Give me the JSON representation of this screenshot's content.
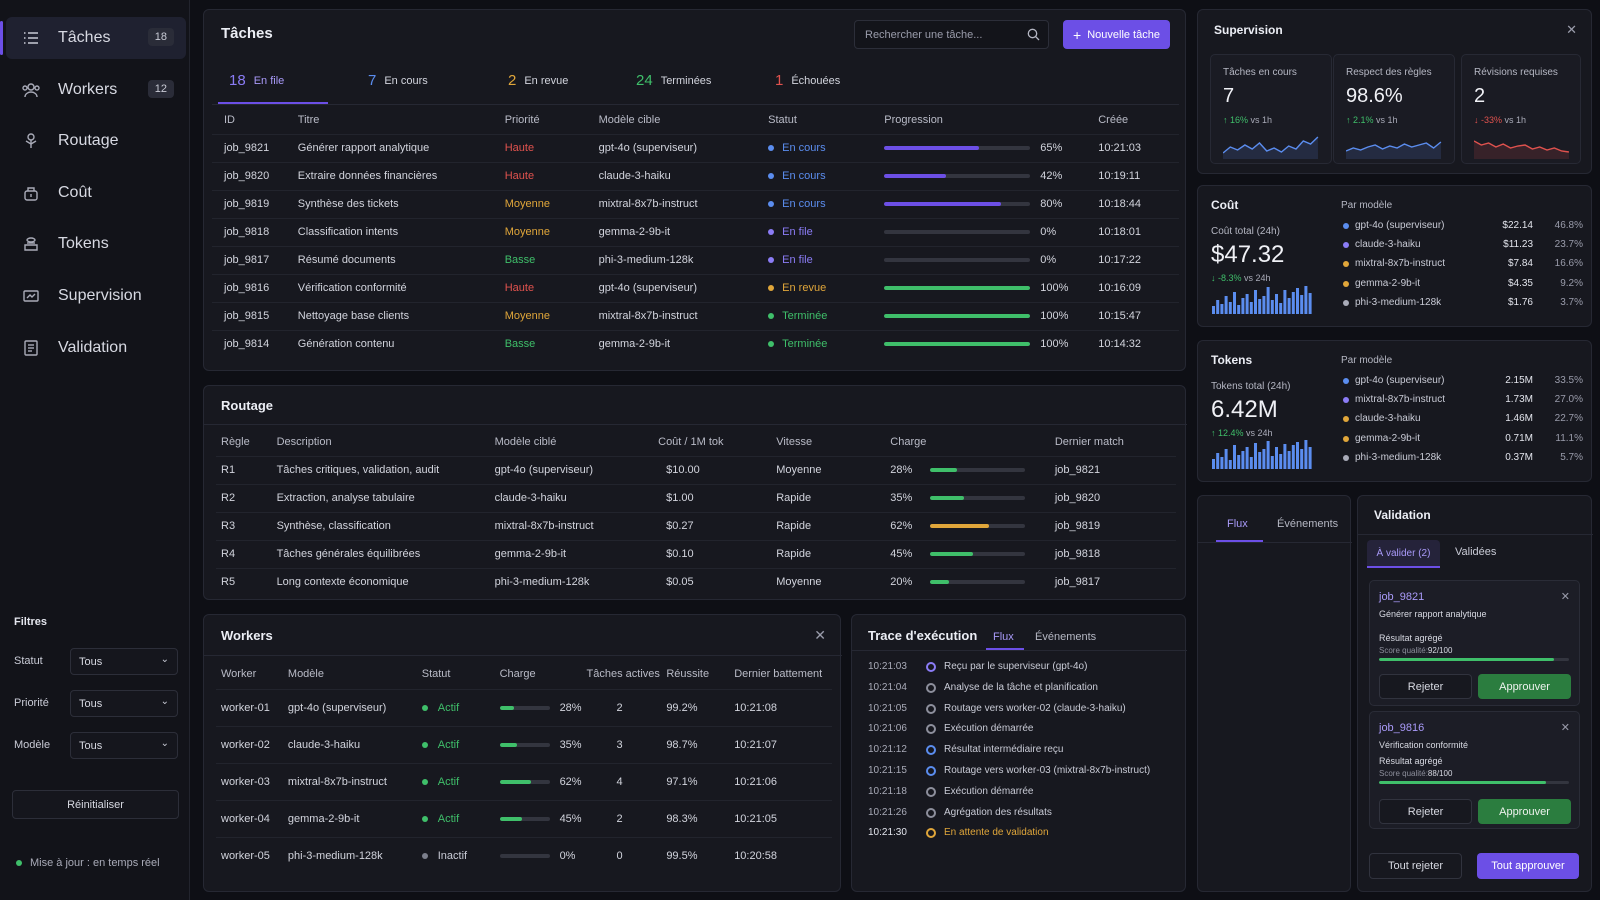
{
  "sidebar": {
    "items": [
      {
        "label": "Tâches",
        "badge": "18",
        "icon": "list-icon"
      },
      {
        "label": "Workers",
        "badge": "12",
        "icon": "users-icon"
      },
      {
        "label": "Routage",
        "badge": "",
        "icon": "route-icon"
      },
      {
        "label": "Coût",
        "badge": "",
        "icon": "coin-icon"
      },
      {
        "label": "Tokens",
        "badge": "",
        "icon": "coins-icon"
      },
      {
        "label": "Supervision",
        "badge": "",
        "icon": "monitor-icon"
      },
      {
        "label": "Validation",
        "badge": "",
        "icon": "checklist-icon"
      }
    ],
    "filters": {
      "title": "Filtres",
      "statut_label": "Statut",
      "statut_value": "Tous",
      "priorite_label": "Priorité",
      "priorite_value": "Tous",
      "modele_label": "Modèle",
      "modele_value": "Tous",
      "reset": "Réinitialiser"
    },
    "live": "Mise à jour : en temps réel"
  },
  "tasks": {
    "title": "Tâches",
    "search_placeholder": "Rechercher une tâche...",
    "new_button": "Nouvelle tâche",
    "tabs": [
      {
        "n": "18",
        "label": "En file",
        "color": "#8b7cf6"
      },
      {
        "n": "7",
        "label": "En cours",
        "color": "#5b8def"
      },
      {
        "n": "2",
        "label": "En revue",
        "color": "#e0a63a"
      },
      {
        "n": "24",
        "label": "Terminées",
        "color": "#3fbf6a"
      },
      {
        "n": "1",
        "label": "Échouées",
        "color": "#e0524e"
      }
    ],
    "columns": [
      "ID",
      "Titre",
      "Priorité",
      "Modèle cible",
      "Statut",
      "Progression",
      "Créée"
    ],
    "rows": [
      {
        "id": "job_9821",
        "title": "Générer rapport analytique",
        "priority": "Haute",
        "model": "gpt-4o (superviseur)",
        "status": "En cours",
        "progress": 65,
        "created": "10:21:03"
      },
      {
        "id": "job_9820",
        "title": "Extraire données financières",
        "priority": "Haute",
        "model": "claude-3-haiku",
        "status": "En cours",
        "progress": 42,
        "created": "10:19:11"
      },
      {
        "id": "job_9819",
        "title": "Synthèse des tickets",
        "priority": "Moyenne",
        "model": "mixtral-8x7b-instruct",
        "status": "En cours",
        "progress": 80,
        "created": "10:18:44"
      },
      {
        "id": "job_9818",
        "title": "Classification intents",
        "priority": "Moyenne",
        "model": "gemma-2-9b-it",
        "status": "En file",
        "progress": 0,
        "created": "10:18:01"
      },
      {
        "id": "job_9817",
        "title": "Résumé documents",
        "priority": "Basse",
        "model": "phi-3-medium-128k",
        "status": "En file",
        "progress": 0,
        "created": "10:17:22"
      },
      {
        "id": "job_9816",
        "title": "Vérification conformité",
        "priority": "Haute",
        "model": "gpt-4o (superviseur)",
        "status": "En revue",
        "progress": 100,
        "created": "10:16:09"
      },
      {
        "id": "job_9815",
        "title": "Nettoyage base clients",
        "priority": "Moyenne",
        "model": "mixtral-8x7b-instruct",
        "status": "Terminée",
        "progress": 100,
        "created": "10:15:47"
      },
      {
        "id": "job_9814",
        "title": "Génération contenu",
        "priority": "Basse",
        "model": "gemma-2-9b-it",
        "status": "Terminée",
        "progress": 100,
        "created": "10:14:32"
      }
    ]
  },
  "routing": {
    "title": "Routage",
    "columns": [
      "Règle",
      "Description",
      "Modèle ciblé",
      "Coût / 1M tok",
      "Vitesse",
      "Charge",
      "Dernier match"
    ],
    "rows": [
      {
        "rule": "R1",
        "desc": "Tâches critiques, validation, audit",
        "model": "gpt-4o (superviseur)",
        "cost": "$10.00",
        "speed": "Moyenne",
        "load": 28,
        "last": "job_9821"
      },
      {
        "rule": "R2",
        "desc": "Extraction, analyse tabulaire",
        "model": "claude-3-haiku",
        "cost": "$1.00",
        "speed": "Rapide",
        "load": 35,
        "last": "job_9820"
      },
      {
        "rule": "R3",
        "desc": "Synthèse, classification",
        "model": "mixtral-8x7b-instruct",
        "cost": "$0.27",
        "speed": "Rapide",
        "load": 62,
        "last": "job_9819"
      },
      {
        "rule": "R4",
        "desc": "Tâches générales équilibrées",
        "model": "gemma-2-9b-it",
        "cost": "$0.10",
        "speed": "Rapide",
        "load": 45,
        "last": "job_9818"
      },
      {
        "rule": "R5",
        "desc": "Long contexte économique",
        "model": "phi-3-medium-128k",
        "cost": "$0.05",
        "speed": "Moyenne",
        "load": 20,
        "last": "job_9817"
      }
    ]
  },
  "workers": {
    "title": "Workers",
    "columns": [
      "Worker",
      "Modèle",
      "Statut",
      "Charge",
      "Tâches actives",
      "Réussite",
      "Dernier battement"
    ],
    "rows": [
      {
        "name": "worker-01",
        "model": "gpt-4o (superviseur)",
        "status": "Actif",
        "load": 28,
        "active": "2",
        "success": "99.2%",
        "beat": "10:21:08"
      },
      {
        "name": "worker-02",
        "model": "claude-3-haiku",
        "status": "Actif",
        "load": 35,
        "active": "3",
        "success": "98.7%",
        "beat": "10:21:07"
      },
      {
        "name": "worker-03",
        "model": "mixtral-8x7b-instruct",
        "status": "Actif",
        "load": 62,
        "active": "4",
        "success": "97.1%",
        "beat": "10:21:06"
      },
      {
        "name": "worker-04",
        "model": "gemma-2-9b-it",
        "status": "Actif",
        "load": 45,
        "active": "2",
        "success": "98.3%",
        "beat": "10:21:05"
      },
      {
        "name": "worker-05",
        "model": "phi-3-medium-128k",
        "status": "Inactif",
        "load": 0,
        "active": "0",
        "success": "99.5%",
        "beat": "10:20:58"
      }
    ]
  },
  "trace": {
    "title": "Trace d'exécution",
    "tab_flux": "Flux",
    "tab_events": "Événements",
    "rows": [
      {
        "t": "10:21:03",
        "msg": "Reçu par le superviseur (gpt-4o)",
        "kind": "purple"
      },
      {
        "t": "10:21:04",
        "msg": "Analyse de la tâche et planification",
        "kind": "gray"
      },
      {
        "t": "10:21:05",
        "msg": "Routage vers worker-02 (claude-3-haiku)",
        "kind": "gray"
      },
      {
        "t": "10:21:06",
        "msg": "Exécution démarrée",
        "kind": "gray"
      },
      {
        "t": "10:21:12",
        "msg": "Résultat intermédiaire reçu",
        "kind": "blue"
      },
      {
        "t": "10:21:15",
        "msg": "Routage vers worker-03 (mixtral-8x7b-instruct)",
        "kind": "blue"
      },
      {
        "t": "10:21:18",
        "msg": "Exécution démarrée",
        "kind": "gray"
      },
      {
        "t": "10:21:26",
        "msg": "Agrégation des résultats",
        "kind": "gray"
      },
      {
        "t": "10:21:30",
        "msg": "En attente de validation",
        "kind": "amber"
      }
    ]
  },
  "supervision": {
    "title": "Supervision",
    "kpis": [
      {
        "label": "Tâches en cours",
        "value": "7",
        "delta": "↑ 16%",
        "suffix": "vs 1h",
        "up": true
      },
      {
        "label": "Respect des règles",
        "value": "98.6%",
        "delta": "↑ 2.1%",
        "suffix": "vs 1h",
        "up": true
      },
      {
        "label": "Révisions requises",
        "value": "2",
        "delta": "↓ -33%",
        "suffix": "vs 1h",
        "up": false
      }
    ]
  },
  "cost": {
    "title": "Coût",
    "total_label": "Coût total (24h)",
    "total": "$47.32",
    "delta": "↓ -8.3%",
    "suffix": "vs 24h",
    "by_model": "Par modèle",
    "rows": [
      {
        "name": "gpt-4o (superviseur)",
        "val": "$22.14",
        "pct": "46.8%",
        "color": "#5b8def"
      },
      {
        "name": "claude-3-haiku",
        "val": "$11.23",
        "pct": "23.7%",
        "color": "#8b7cf6"
      },
      {
        "name": "mixtral-8x7b-instruct",
        "val": "$7.84",
        "pct": "16.6%",
        "color": "#e0a63a"
      },
      {
        "name": "gemma-2-9b-it",
        "val": "$4.35",
        "pct": "9.2%",
        "color": "#e0a63a"
      },
      {
        "name": "phi-3-medium-128k",
        "val": "$1.76",
        "pct": "3.7%",
        "color": "#a9abb8"
      }
    ]
  },
  "tokens": {
    "title": "Tokens",
    "total_label": "Tokens total (24h)",
    "total": "6.42M",
    "delta": "↑ 12.4%",
    "suffix": "vs 24h",
    "by_model": "Par modèle",
    "rows": [
      {
        "name": "gpt-4o (superviseur)",
        "val": "2.15M",
        "pct": "33.5%",
        "color": "#5b8def"
      },
      {
        "name": "mixtral-8x7b-instruct",
        "val": "1.73M",
        "pct": "27.0%",
        "color": "#8b7cf6"
      },
      {
        "name": "claude-3-haiku",
        "val": "1.46M",
        "pct": "22.7%",
        "color": "#e0a63a"
      },
      {
        "name": "gemma-2-9b-it",
        "val": "0.71M",
        "pct": "11.1%",
        "color": "#e0a63a"
      },
      {
        "name": "phi-3-medium-128k",
        "val": "0.37M",
        "pct": "5.7%",
        "color": "#a9abb8"
      }
    ]
  },
  "flux": {
    "tab_flux": "Flux",
    "tab_events": "Événements"
  },
  "validation": {
    "title": "Validation",
    "tab_pending": "À valider (2)",
    "tab_done": "Validées",
    "cards": [
      {
        "id": "job_9821",
        "title": "Générer rapport analytique",
        "result": "Résultat agrégé",
        "score_label": "Score qualité:",
        "score": "92/100",
        "score_value": 92,
        "reject": "Rejeter",
        "approve": "Approuver"
      },
      {
        "id": "job_9816",
        "title": "Vérification conformité",
        "result": "Résultat agrégé",
        "score_label": "Score qualité:",
        "score": "88/100",
        "score_value": 88,
        "reject": "Rejeter",
        "approve": "Approuver"
      }
    ],
    "reject_all": "Tout rejeter",
    "approve_all": "Tout approuver"
  },
  "colors": {
    "accent": "#6c4fe6",
    "blue": "#5b8def",
    "purple": "#8b7cf6",
    "amber": "#e0a63a",
    "green": "#3fbf6a",
    "red": "#e0524e",
    "gray": "#7c7f8c"
  }
}
